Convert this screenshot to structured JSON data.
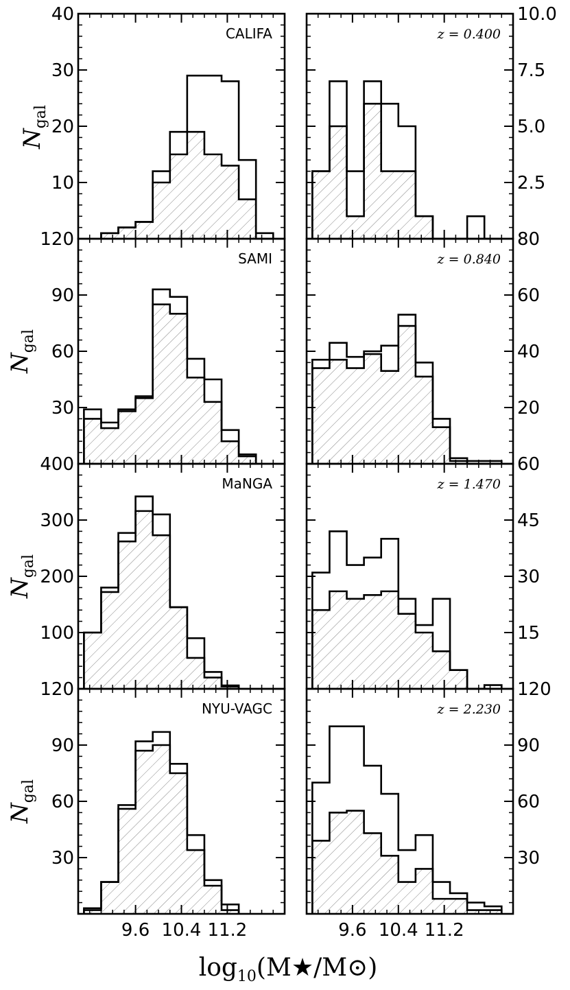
{
  "figure": {
    "xlabel": {
      "main": "log",
      "sub": "10",
      "tail": "(M★/M⊙)"
    },
    "ylabel": {
      "main": "N",
      "sub": "gal"
    }
  },
  "chart_data": [
    {
      "type": "bar",
      "id": "califa",
      "label": "CALIFA",
      "label_style": "sans",
      "xlim": [
        8.6,
        12.2
      ],
      "ylim": [
        0,
        40
      ],
      "xticks": [
        "9.6",
        "10.4",
        "11.2"
      ],
      "yticks": [
        {
          "v": 10,
          "t": "10"
        },
        {
          "v": 20,
          "t": "20"
        },
        {
          "v": 30,
          "t": "30"
        },
        {
          "v": 40,
          "t": "40"
        }
      ],
      "yaxis_side": "left",
      "bin_left": 9.0,
      "bin_width": 0.3,
      "open": [
        1,
        2,
        3,
        12,
        19,
        29,
        29,
        28,
        14,
        1
      ],
      "hatched": [
        1,
        2,
        3,
        10,
        15,
        19,
        15,
        13,
        7,
        0
      ]
    },
    {
      "type": "bar",
      "id": "z0400",
      "label": "z = 0.400",
      "label_style": "italic",
      "xlim": [
        8.8,
        12.4
      ],
      "ylim": [
        0,
        10
      ],
      "xticks": [
        "9.6",
        "10.4",
        "11.2"
      ],
      "yticks": [
        {
          "v": 2.5,
          "t": "2.5"
        },
        {
          "v": 5.0,
          "t": "5.0"
        },
        {
          "v": 7.5,
          "t": "7.5"
        },
        {
          "v": 10,
          "t": "10.0"
        }
      ],
      "yaxis_side": "right",
      "bin_left": 8.9,
      "bin_width": 0.3,
      "open": [
        3,
        7,
        3,
        7,
        6,
        5,
        1,
        0,
        0,
        1,
        0
      ],
      "hatched": [
        3,
        5,
        1,
        6,
        3,
        3,
        1,
        0,
        0,
        0,
        0
      ]
    },
    {
      "type": "bar",
      "id": "sami",
      "label": "SAMI",
      "label_style": "sans",
      "xlim": [
        8.6,
        12.2
      ],
      "ylim": [
        0,
        120
      ],
      "xticks": [
        "9.6",
        "10.4",
        "11.2"
      ],
      "yticks": [
        {
          "v": 30,
          "t": "30"
        },
        {
          "v": 60,
          "t": "60"
        },
        {
          "v": 90,
          "t": "90"
        },
        {
          "v": 120,
          "t": "120"
        }
      ],
      "yaxis_side": "left",
      "bin_left": 8.7,
      "bin_width": 0.3,
      "open": [
        29,
        22,
        29,
        36,
        93,
        89,
        56,
        45,
        18,
        5
      ],
      "hatched": [
        24,
        19,
        28,
        35,
        85,
        80,
        46,
        33,
        12,
        4
      ]
    },
    {
      "type": "bar",
      "id": "z0840",
      "label": "z = 0.840",
      "label_style": "italic",
      "xlim": [
        8.8,
        12.4
      ],
      "ylim": [
        0,
        80
      ],
      "xticks": [
        "9.6",
        "10.4",
        "11.2"
      ],
      "yticks": [
        {
          "v": 20,
          "t": "20"
        },
        {
          "v": 40,
          "t": "40"
        },
        {
          "v": 60,
          "t": "60"
        },
        {
          "v": 80,
          "t": "80"
        }
      ],
      "yaxis_side": "right",
      "bin_left": 8.9,
      "bin_width": 0.3,
      "open": [
        37,
        43,
        38,
        40,
        42,
        53,
        36,
        16,
        2,
        1,
        1
      ],
      "hatched": [
        34,
        37,
        34,
        39,
        33,
        49,
        31,
        13,
        1,
        0,
        0
      ]
    },
    {
      "type": "bar",
      "id": "manga",
      "label": "MaNGA",
      "label_style": "sans",
      "xlim": [
        8.6,
        12.2
      ],
      "ylim": [
        0,
        400
      ],
      "xticks": [
        "9.6",
        "10.4",
        "11.2"
      ],
      "yticks": [
        {
          "v": 100,
          "t": "100"
        },
        {
          "v": 200,
          "t": "200"
        },
        {
          "v": 300,
          "t": "300"
        },
        {
          "v": 400,
          "t": "400"
        }
      ],
      "yaxis_side": "left",
      "bin_left": 8.7,
      "bin_width": 0.3,
      "open": [
        100,
        180,
        277,
        342,
        310,
        145,
        90,
        30,
        6
      ],
      "hatched": [
        100,
        172,
        262,
        316,
        273,
        145,
        55,
        20,
        4
      ]
    },
    {
      "type": "bar",
      "id": "z1470",
      "label": "z = 1.470",
      "label_style": "italic",
      "xlim": [
        8.8,
        12.4
      ],
      "ylim": [
        0,
        60
      ],
      "xticks": [
        "9.6",
        "10.4",
        "11.2"
      ],
      "yticks": [
        {
          "v": 15,
          "t": "15"
        },
        {
          "v": 30,
          "t": "30"
        },
        {
          "v": 45,
          "t": "45"
        },
        {
          "v": 60,
          "t": "60"
        }
      ],
      "yaxis_side": "right",
      "bin_left": 8.9,
      "bin_width": 0.3,
      "open": [
        31,
        42,
        33,
        35,
        40,
        24,
        17,
        24,
        5,
        0,
        1
      ],
      "hatched": [
        21,
        26,
        24,
        25,
        26,
        20,
        15,
        10,
        5,
        0,
        0
      ]
    },
    {
      "type": "bar",
      "id": "nyu",
      "label": "NYU-VAGC",
      "label_style": "sans",
      "xlim": [
        8.6,
        12.2
      ],
      "ylim": [
        0,
        120
      ],
      "xticks": [
        "9.6",
        "10.4",
        "11.2"
      ],
      "yticks": [
        {
          "v": 30,
          "t": "30"
        },
        {
          "v": 60,
          "t": "60"
        },
        {
          "v": 90,
          "t": "90"
        },
        {
          "v": 120,
          "t": "120"
        }
      ],
      "yaxis_side": "left",
      "bin_left": 8.7,
      "bin_width": 0.3,
      "open": [
        3,
        17,
        58,
        92,
        97,
        80,
        42,
        18,
        5
      ],
      "hatched": [
        2,
        17,
        56,
        87,
        90,
        75,
        34,
        15,
        2
      ]
    },
    {
      "type": "bar",
      "id": "z2230",
      "label": "z = 2.230",
      "label_style": "italic",
      "xlim": [
        8.8,
        12.4
      ],
      "ylim": [
        0,
        120
      ],
      "xticks": [
        "9.6",
        "10.4",
        "11.2"
      ],
      "yticks": [
        {
          "v": 30,
          "t": "30"
        },
        {
          "v": 60,
          "t": "60"
        },
        {
          "v": 90,
          "t": "90"
        },
        {
          "v": 120,
          "t": "120"
        }
      ],
      "yaxis_side": "right",
      "bin_left": 8.9,
      "bin_width": 0.3,
      "open": [
        70,
        100,
        100,
        79,
        64,
        34,
        42,
        17,
        11,
        6,
        4
      ],
      "hatched": [
        39,
        54,
        55,
        43,
        31,
        17,
        24,
        8,
        8,
        2,
        2
      ]
    }
  ]
}
